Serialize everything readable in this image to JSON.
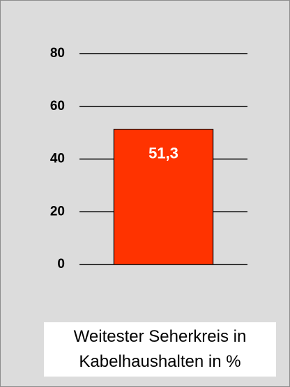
{
  "chart_data": {
    "type": "bar",
    "categories": [
      null
    ],
    "values": [
      51.3
    ],
    "value_labels": [
      "51,3"
    ],
    "color": "#ff3300",
    "ylim": [
      0,
      80
    ],
    "yticks": [
      0,
      20,
      40,
      60,
      80
    ],
    "grid": true,
    "x_label": "Weitester Seherkreis in Kabelhaushalten in %"
  }
}
